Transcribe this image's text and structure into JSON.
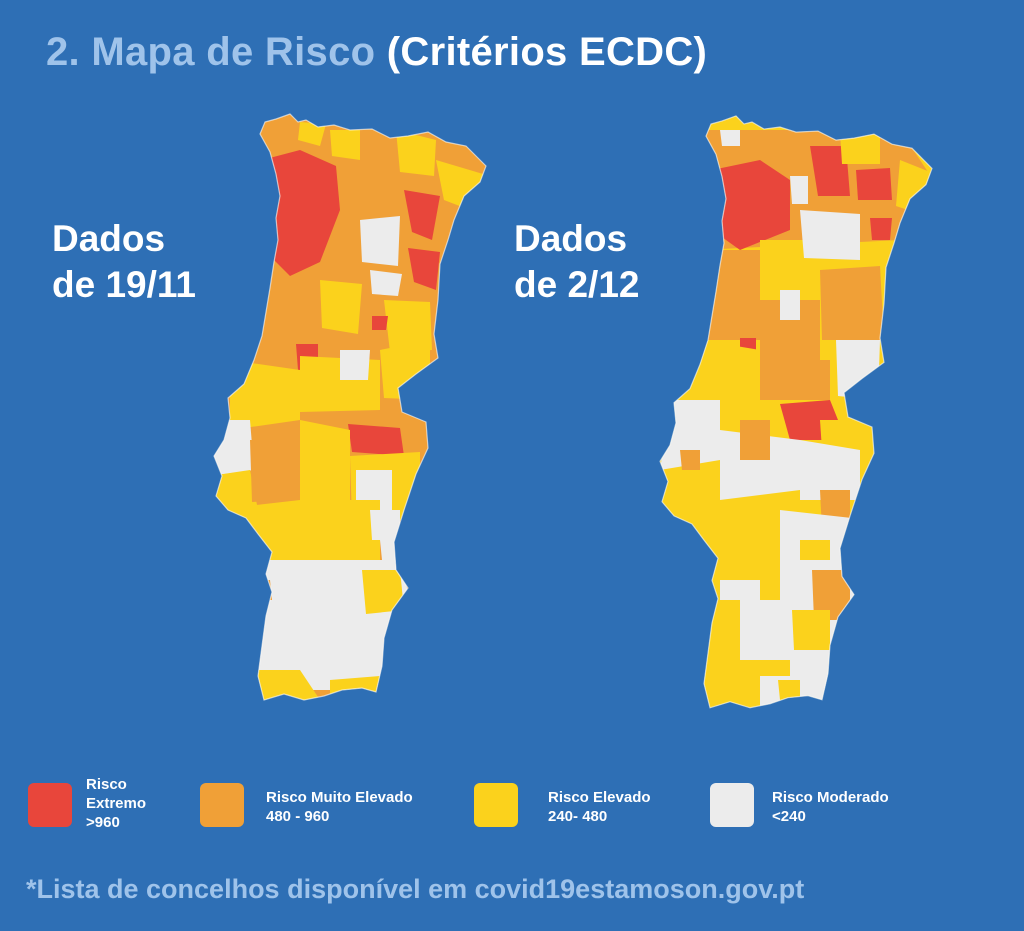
{
  "header": {
    "title_part1": "2. Mapa de Risco",
    "title_part2": "(Critérios ECDC)"
  },
  "maps": [
    {
      "id": "map-19-11",
      "line1": "Dados",
      "line2": "de 19/11"
    },
    {
      "id": "map-2-12",
      "line1": "Dados",
      "line2": "de 2/12"
    }
  ],
  "legend": [
    {
      "key": "extremo",
      "line1": "Risco",
      "line2": "Extremo",
      "line3": ">960",
      "color": "#e8463b"
    },
    {
      "key": "muito-elevado",
      "line1": "Risco Muito  Elevado",
      "line2": "480 - 960",
      "color": "#f0a037"
    },
    {
      "key": "elevado",
      "line1": "Risco  Elevado",
      "line2": "240- 480",
      "color": "#fbd21c"
    },
    {
      "key": "moderado",
      "line1": "Risco  Moderado",
      "line2": "<240",
      "color": "#ececec"
    }
  ],
  "footnote": "*Lista de concelhos disponível em covid19estamoson.gov.pt"
}
